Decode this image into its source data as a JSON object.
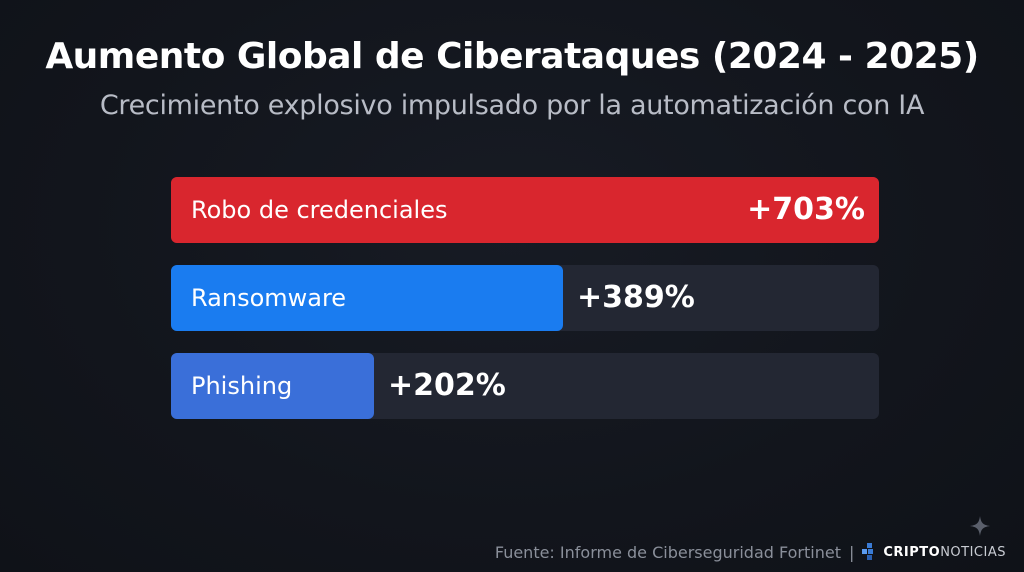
{
  "header": {
    "title": "Aumento Global de Ciberataques (2024 - 2025)",
    "subtitle": "Crecimiento explosivo impulsado por la automatización con IA"
  },
  "chart_data": {
    "type": "bar",
    "orientation": "horizontal",
    "title": "Aumento Global de Ciberataques (2024 - 2025)",
    "subtitle": "Crecimiento explosivo impulsado por la automatización con IA",
    "categories": [
      "Robo de credenciales",
      "Ransomware",
      "Phishing"
    ],
    "values": [
      703,
      389,
      202
    ],
    "value_labels": [
      "+703%",
      "+389%",
      "+202%"
    ],
    "colors": [
      "#d9262e",
      "#1a7cf0",
      "#3a6fd9"
    ],
    "xlim": [
      0,
      703
    ],
    "grid": false,
    "legend": "none"
  },
  "footer": {
    "source": "Fuente: Informe de Ciberseguridad Fortinet",
    "separator": "|",
    "logo_bold": "CRIPTO",
    "logo_light": "NOTICIAS"
  },
  "icons": {
    "logo": "criptonoticias-logo-icon",
    "sparkle": "sparkle-icon"
  }
}
